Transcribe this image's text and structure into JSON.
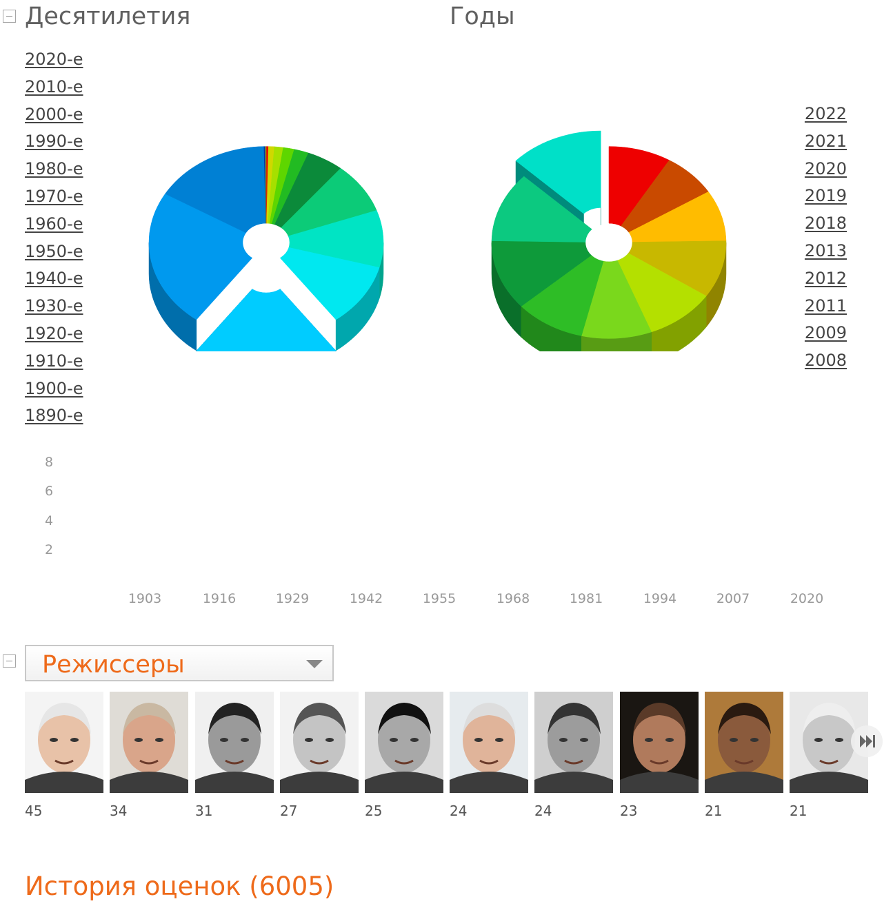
{
  "decades": {
    "title": "Десятилетия",
    "links": [
      "2020-е",
      "2010-е",
      "2000-е",
      "1990-е",
      "1980-е",
      "1970-е",
      "1960-е",
      "1950-е",
      "1940-е",
      "1930-е",
      "1920-е",
      "1910-е",
      "1900-е",
      "1890-е"
    ]
  },
  "years": {
    "title": "Годы",
    "links": [
      "2022",
      "2021",
      "2020",
      "2019",
      "2018",
      "2013",
      "2012",
      "2011",
      "2009",
      "2008"
    ]
  },
  "chart_data": [
    {
      "type": "pie",
      "title": "",
      "categories": [
        "2020-е",
        "2010-е",
        "2000-е",
        "1990-е",
        "1980-е",
        "1970-е",
        "1960-е",
        "1950-е",
        "1940-е",
        "1930-е",
        "1920-е",
        "1910-е",
        "1900-е",
        "1890-е"
      ],
      "values": [
        0.3,
        0.8,
        1.2,
        1.5,
        2.0,
        5.0,
        8.5,
        9.5,
        10.5,
        20.0,
        23.0,
        16.0,
        0.2,
        0.1
      ],
      "colors": [
        "#e60000",
        "#d0d800",
        "#a6e000",
        "#5ed600",
        "#22bb22",
        "#0b8a3a",
        "#0ccb78",
        "#00e4c4",
        "#00e8f0",
        "#00ccff",
        "#0099ee",
        "#0080d4",
        "#0036a8",
        "#a0a000"
      ],
      "exploded": [
        "1930-е"
      ]
    },
    {
      "type": "pie",
      "title": "",
      "categories": [
        "2022",
        "2021",
        "2020",
        "2019",
        "2018",
        "2013",
        "2012",
        "2011",
        "2009",
        "2008"
      ],
      "values": [
        8,
        7,
        8,
        9,
        9,
        9,
        9,
        11,
        11,
        12
      ],
      "colors": [
        "#ee0000",
        "#c94a00",
        "#ffbc00",
        "#c8b800",
        "#b4e000",
        "#7ad81c",
        "#2ebd26",
        "#0e9a3a",
        "#0cc980",
        "#00e0c8"
      ],
      "exploded": [
        "2008"
      ]
    },
    {
      "type": "line",
      "title": "",
      "x_ticks": [
        1903,
        1916,
        1929,
        1942,
        1955,
        1968,
        1981,
        1994,
        2007,
        2020
      ],
      "y_ticks": [
        2,
        4,
        6,
        8
      ],
      "series": []
    }
  ],
  "directors_section": {
    "dropdown_label": "Режиссеры",
    "counts": [
      "45",
      "34",
      "31",
      "27",
      "25",
      "24",
      "24",
      "23",
      "21",
      "21"
    ]
  },
  "history": {
    "label": "История оценок (6005)"
  },
  "colors": {
    "accent": "#ee6a1a",
    "link": "#444444",
    "axis": "#999999"
  }
}
